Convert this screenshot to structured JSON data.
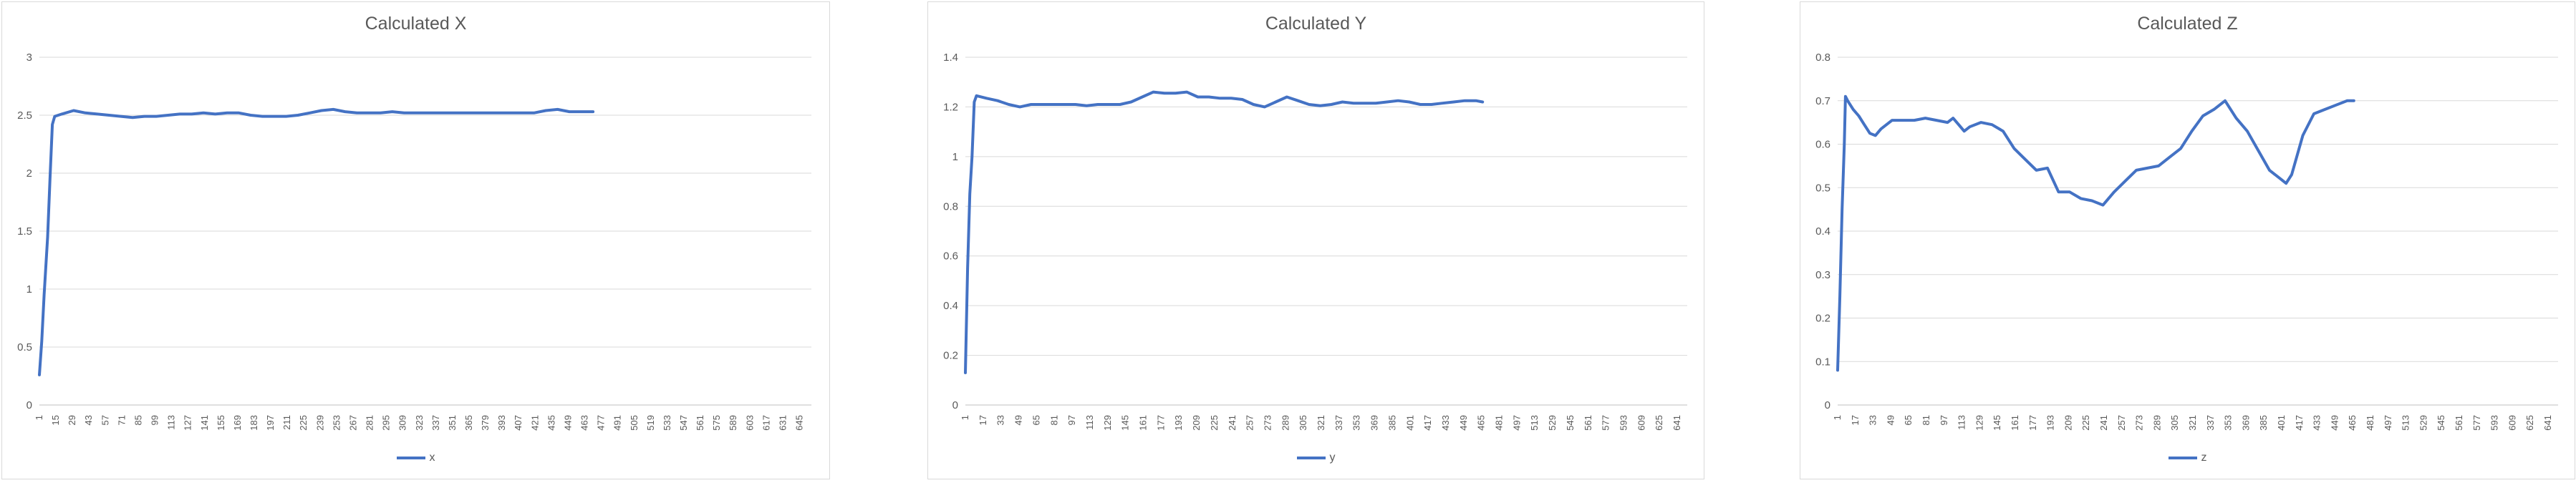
{
  "chart_data": [
    {
      "type": "line",
      "title": "Calculated X",
      "xlabel": "",
      "ylabel": "",
      "xlim": [
        1,
        655
      ],
      "ylim": [
        0,
        3
      ],
      "yticks": [
        0,
        0.5,
        1,
        1.5,
        2,
        2.5,
        3
      ],
      "xtick_start": 1,
      "xtick_step": 14,
      "xtick_count": 47,
      "grid": true,
      "legend": "bottom-center",
      "color": "#4472c4",
      "series": [
        {
          "name": "x",
          "x": [
            1,
            3,
            5,
            8,
            10,
            12,
            14,
            20,
            30,
            40,
            50,
            60,
            70,
            80,
            90,
            100,
            110,
            120,
            130,
            140,
            150,
            160,
            170,
            180,
            190,
            200,
            210,
            220,
            230,
            240,
            250,
            260,
            270,
            280,
            290,
            300,
            310,
            320,
            330,
            340,
            350,
            360,
            370,
            380,
            390,
            400,
            410,
            420,
            430,
            440,
            450,
            460,
            470
          ],
          "values": [
            0.26,
            0.55,
            0.95,
            1.45,
            1.95,
            2.42,
            2.49,
            2.51,
            2.54,
            2.52,
            2.51,
            2.5,
            2.49,
            2.48,
            2.49,
            2.49,
            2.5,
            2.51,
            2.51,
            2.52,
            2.51,
            2.52,
            2.52,
            2.5,
            2.49,
            2.49,
            2.49,
            2.5,
            2.52,
            2.54,
            2.55,
            2.53,
            2.52,
            2.52,
            2.52,
            2.53,
            2.52,
            2.52,
            2.52,
            2.52,
            2.52,
            2.52,
            2.52,
            2.52,
            2.52,
            2.52,
            2.52,
            2.52,
            2.54,
            2.55,
            2.53,
            2.53,
            2.53
          ]
        }
      ]
    },
    {
      "type": "line",
      "title": "Calculated Y",
      "xlabel": "",
      "ylabel": "",
      "xlim": [
        1,
        650
      ],
      "ylim": [
        0,
        1.4
      ],
      "yticks": [
        0,
        0.2,
        0.4,
        0.6,
        0.8,
        1,
        1.2,
        1.4
      ],
      "xtick_start": 1,
      "xtick_step": 16,
      "xtick_count": 41,
      "grid": true,
      "legend": "bottom-center",
      "color": "#4472c4",
      "series": [
        {
          "name": "y",
          "x": [
            1,
            3,
            5,
            7,
            9,
            11,
            20,
            30,
            40,
            50,
            60,
            70,
            80,
            90,
            100,
            110,
            120,
            130,
            140,
            150,
            160,
            170,
            180,
            190,
            200,
            210,
            220,
            230,
            240,
            250,
            260,
            270,
            280,
            290,
            300,
            310,
            320,
            330,
            340,
            350,
            360,
            370,
            380,
            390,
            400,
            410,
            420,
            430,
            440,
            450,
            460,
            466
          ],
          "values": [
            0.13,
            0.55,
            0.85,
            1.0,
            1.22,
            1.245,
            1.235,
            1.225,
            1.21,
            1.2,
            1.21,
            1.21,
            1.21,
            1.21,
            1.21,
            1.205,
            1.21,
            1.21,
            1.21,
            1.22,
            1.24,
            1.26,
            1.255,
            1.255,
            1.26,
            1.24,
            1.24,
            1.235,
            1.235,
            1.23,
            1.21,
            1.2,
            1.22,
            1.24,
            1.225,
            1.21,
            1.205,
            1.21,
            1.22,
            1.215,
            1.215,
            1.215,
            1.22,
            1.225,
            1.22,
            1.21,
            1.21,
            1.215,
            1.22,
            1.225,
            1.225,
            1.22
          ]
        }
      ]
    },
    {
      "type": "line",
      "title": "Calculated Z",
      "xlabel": "",
      "ylabel": "",
      "xlim": [
        1,
        650
      ],
      "ylim": [
        0,
        0.8
      ],
      "yticks": [
        0,
        0.1,
        0.2,
        0.3,
        0.4,
        0.5,
        0.6,
        0.7,
        0.8
      ],
      "xtick_start": 1,
      "xtick_step": 16,
      "xtick_count": 41,
      "grid": true,
      "legend": "bottom-center",
      "color": "#4472c4",
      "series": [
        {
          "name": "z",
          "x": [
            1,
            3,
            5,
            7,
            8,
            10,
            15,
            20,
            25,
            30,
            35,
            40,
            50,
            60,
            70,
            80,
            90,
            100,
            105,
            110,
            115,
            120,
            130,
            140,
            150,
            160,
            170,
            180,
            190,
            200,
            210,
            220,
            230,
            240,
            250,
            260,
            270,
            280,
            290,
            300,
            310,
            320,
            330,
            340,
            350,
            360,
            370,
            380,
            390,
            400,
            405,
            410,
            420,
            430,
            440,
            450,
            460,
            466
          ],
          "values": [
            0.08,
            0.25,
            0.45,
            0.6,
            0.71,
            0.7,
            0.68,
            0.665,
            0.645,
            0.625,
            0.62,
            0.635,
            0.655,
            0.655,
            0.655,
            0.66,
            0.655,
            0.65,
            0.66,
            0.645,
            0.63,
            0.64,
            0.65,
            0.645,
            0.63,
            0.59,
            0.565,
            0.54,
            0.545,
            0.49,
            0.49,
            0.475,
            0.47,
            0.46,
            0.49,
            0.515,
            0.54,
            0.545,
            0.55,
            0.57,
            0.59,
            0.63,
            0.665,
            0.68,
            0.7,
            0.66,
            0.63,
            0.585,
            0.54,
            0.52,
            0.51,
            0.53,
            0.62,
            0.67,
            0.68,
            0.69,
            0.7,
            0.7
          ]
        }
      ]
    }
  ]
}
